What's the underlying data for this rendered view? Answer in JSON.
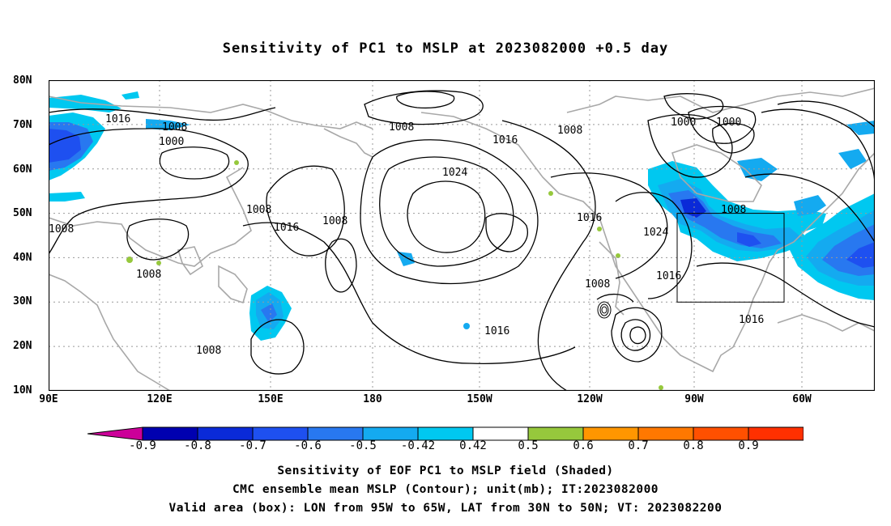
{
  "title": "Sensitivity of PC1 to MSLP at 2023082000 +0.5 day",
  "lat_labels": [
    "80N",
    "70N",
    "60N",
    "50N",
    "40N",
    "30N",
    "20N",
    "10N"
  ],
  "lon_labels": [
    "90E",
    "120E",
    "150E",
    "180",
    "150W",
    "120W",
    "90W",
    "60W"
  ],
  "colorbar": {
    "labels": [
      "-0.9",
      "-0.8",
      "-0.7",
      "-0.6",
      "-0.5",
      "-0.42",
      "0.42",
      "0.5",
      "0.6",
      "0.7",
      "0.8",
      "0.9"
    ],
    "colors": [
      "#cc0099",
      "#0000b0",
      "#0a2ad8",
      "#1e50f0",
      "#2878f0",
      "#14aaf0",
      "#00c8f0",
      "#ffffff",
      "#96c83c",
      "#ff9600",
      "#ff7800",
      "#ff5000",
      "#ff3000",
      "#ff0000",
      "#f0a0c8"
    ]
  },
  "contour_labels": [
    "1016",
    "1008",
    "1000",
    "1008",
    "1024",
    "1016",
    "1008",
    "1000",
    "1000",
    "1008",
    "1016",
    "1008",
    "1008",
    "1008",
    "1016",
    "1024",
    "1016",
    "1008",
    "1016",
    "1016",
    "1008",
    "1008"
  ],
  "captions": [
    "Sensitivity of EOF PC1 to MSLP field (Shaded)",
    "CMC ensemble mean MSLP (Contour); unit(mb); IT:2023082000",
    "Valid area (box): LON from 95W to 65W, LAT from 30N to 50N; VT: 2023082200"
  ],
  "valid_box": {
    "lon_west": "95W",
    "lon_east": "65W",
    "lat_south": "30N",
    "lat_north": "50N"
  }
}
